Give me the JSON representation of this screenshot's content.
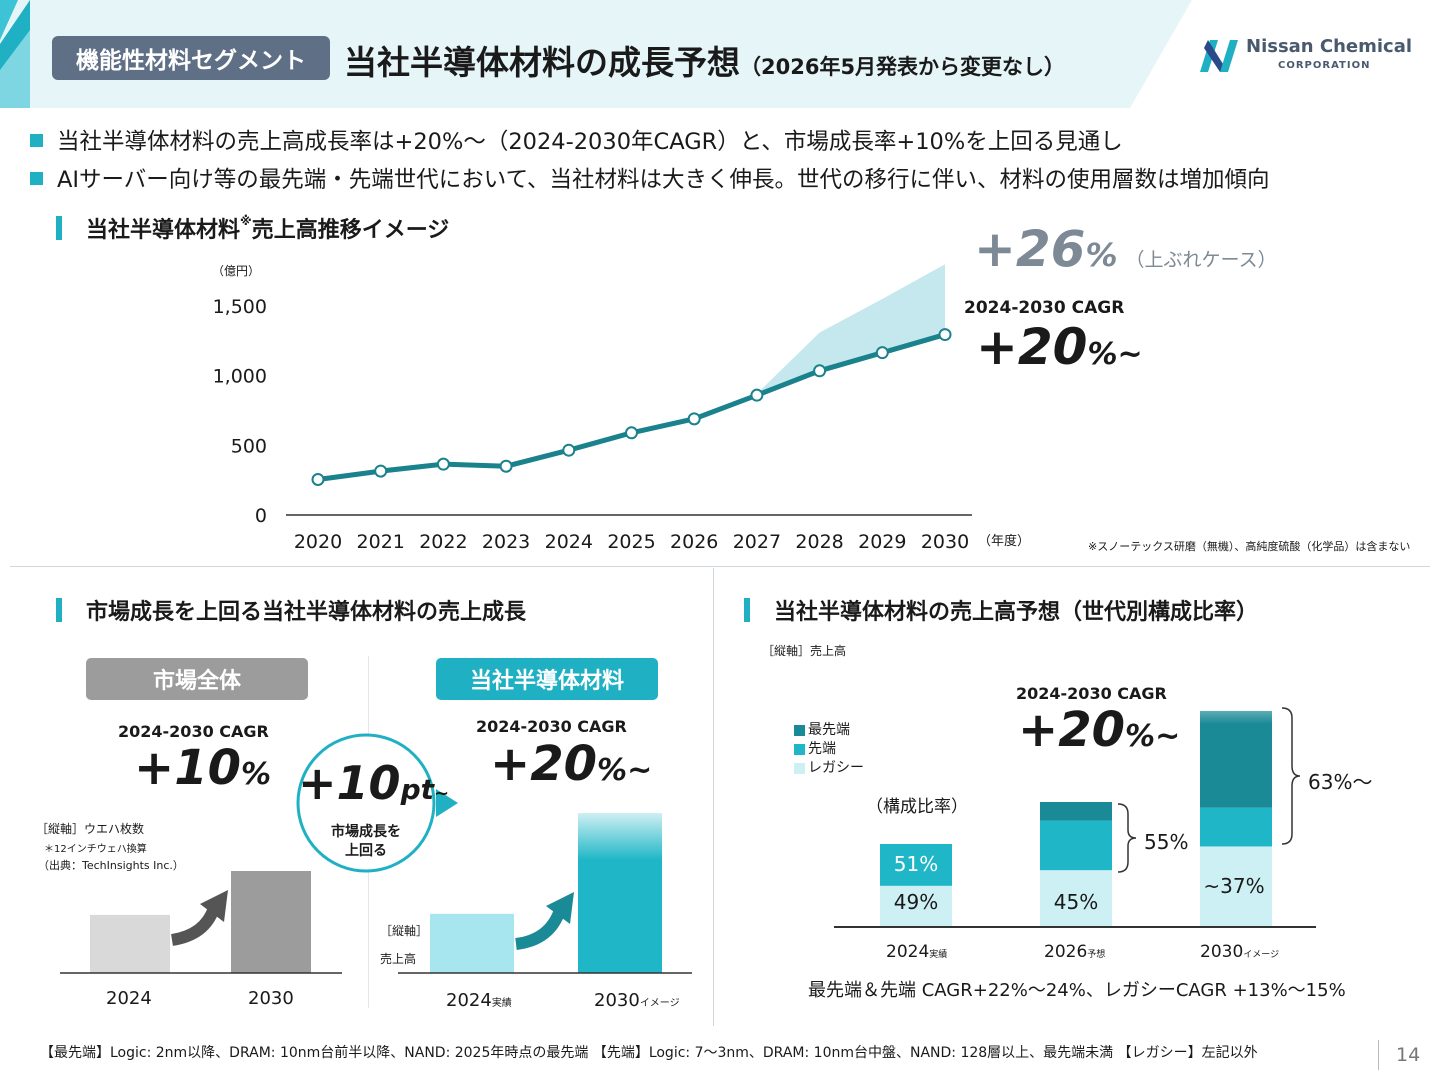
{
  "header": {
    "segment_tag": "機能性材料セグメント",
    "title": "当社半導体材料の成長予想",
    "title_sub": "（2026年5月発表から変更なし）",
    "logo_name": "Nissan Chemical",
    "logo_sub": "CORPORATION"
  },
  "bullets": [
    "当社半導体材料の売上高成長率は+20%～（2024-2030年CAGR）と、市場成長率+10%を上回る見通し",
    "AIサーバー向け等の最先端・先端世代において、当社材料は大きく伸長。世代の移行に伴い、材料の使用層数は増加傾向"
  ],
  "top_chart": {
    "section_title": "当社半導体材料",
    "section_title_mark": "※",
    "section_title_rest": " 売上高推移イメージ",
    "unit": "（億円）",
    "x_unit": "（年度）",
    "upside_value": "+26",
    "upside_pct": "%",
    "upside_label": "（上ぶれケース）",
    "cagr_label": "2024-2030 CAGR",
    "cagr_value": "+20",
    "cagr_pct": "%~",
    "footnote": "※スノーテックス研磨（無機）、高純度硫酸（化学品）は含まない"
  },
  "chart_data": [
    {
      "type": "line",
      "x": [
        "2020",
        "2021",
        "2022",
        "2023",
        "2024",
        "2025",
        "2026",
        "2027",
        "2028",
        "2029",
        "2030"
      ],
      "series": [
        {
          "values": [
            255,
            315,
            365,
            350,
            465,
            590,
            690,
            860,
            1035,
            1165,
            1295
          ]
        },
        {
          "name": "上ぶれケース",
          "values": [
            null,
            null,
            null,
            null,
            null,
            null,
            null,
            870,
            1310,
            1550,
            1800
          ]
        }
      ],
      "yticks": [
        "0",
        "500",
        "1,000",
        "1,500"
      ],
      "ylim": [
        0,
        1800
      ],
      "color_line": "#19828d",
      "color_band": "#c4e8ee"
    },
    {
      "type": "bar",
      "title": "市場全体",
      "categories": [
        "2024",
        "2030"
      ],
      "values": [
        0.57,
        1.0
      ]
    },
    {
      "type": "bar",
      "title": "当社半導体材料",
      "categories": [
        "2024実績",
        "2030イメージ"
      ],
      "values": [
        0.37,
        1.0
      ]
    },
    {
      "type": "bar",
      "categories": [
        "2024実績",
        "2026予想",
        "2030イメージ"
      ],
      "series": [
        {
          "name": "レガシー",
          "values": [
            49,
            45,
            37
          ]
        },
        {
          "name": "先端",
          "values": [
            51,
            40,
            18
          ]
        },
        {
          "name": "最先端",
          "values": [
            0,
            15,
            45
          ]
        }
      ]
    }
  ],
  "market": {
    "section_title": "市場成長を上回る当社半導体材料の売上成長",
    "market_pill": "市場全体",
    "market_cagr_label": "2024-2030 CAGR",
    "market_cagr_value": "+10",
    "market_cagr_pct": "%",
    "market_axis_note": "［縦軸］ウエハ枚数",
    "market_axis_note2": "＊12インチウェハ換算",
    "market_source": "（出典：TechInsights Inc.）",
    "market_x": [
      "2024",
      "2030"
    ],
    "circle_value": "+10",
    "circle_unit": "pt",
    "circle_tilde": "~",
    "circle_text1": "市場成長を",
    "circle_text2": "上回る",
    "ours_pill": "当社半導体材料",
    "ours_cagr_label": "2024-2030 CAGR",
    "ours_cagr_value": "+20",
    "ours_cagr_pct": "%~",
    "ours_axis_note": "［縦軸］",
    "ours_axis_note2": "売上高",
    "ours_x1": "2024",
    "ours_x1_sub": "実績",
    "ours_x2": "2030",
    "ours_x2_sub": "イメージ"
  },
  "generation": {
    "section_title": "当社半導体材料の売上高予想（世代別構成比率）",
    "axis_note": "［縦軸］売上高",
    "legend": [
      "最先端",
      "先端",
      "レガシー"
    ],
    "ratio_label": "（構成比率）",
    "cagr_label": "2024-2030 CAGR",
    "cagr_value": "+20",
    "cagr_pct": "%~",
    "labels_2024": [
      "51%",
      "49%"
    ],
    "labels_2026": [
      "45%"
    ],
    "brace_2026": "55%",
    "labels_2030": [
      "~37%"
    ],
    "brace_2030": "63%～",
    "x": [
      {
        "year": "2024",
        "sub": "実績"
      },
      {
        "year": "2026",
        "sub": "予想"
      },
      {
        "year": "2030",
        "sub": "イメージ"
      }
    ],
    "note": "最先端＆先端 CAGR+22%～24%、レガシーCAGR +13%～15%"
  },
  "footer": {
    "definitions": "【最先端】Logic: 2nm以降、DRAM: 10nm台前半以降、NAND: 2025年時点の最先端 【先端】Logic: 7～3nm、DRAM: 10nm台中盤、NAND: 128層以上、最先端未満 【レガシー】左記以外",
    "page_number": "14"
  },
  "colors": {
    "accent": "#1fb0c4",
    "dark_teal": "#1a8a96",
    "light_teal": "#cdf0f5",
    "gray_dark": "#9c9c9c",
    "gray_light": "#d9d9d9",
    "tag_bg": "#5f6f86"
  }
}
